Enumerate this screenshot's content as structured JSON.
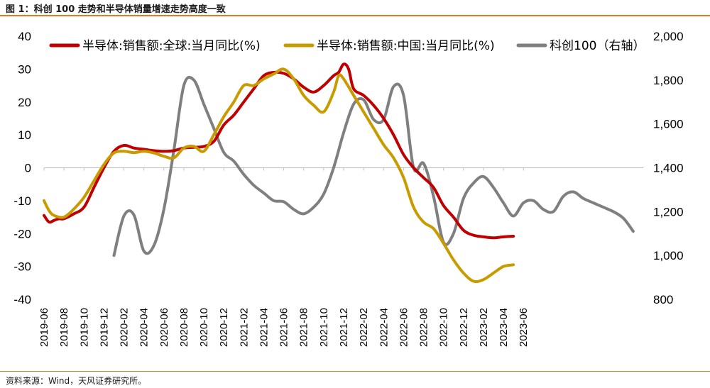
{
  "header": {
    "title": "图 1：科创 100 走势和半导体销量增速走势高度一致"
  },
  "footer": {
    "source": "资料来源：Wind，天风证券研究所。"
  },
  "colors": {
    "global": "#c00000",
    "china": "#c89b00",
    "kc100": "#7f7f7f",
    "accent": "#e87722"
  },
  "chart_data": {
    "type": "line",
    "title": "科创 100 走势和半导体销量增速走势高度一致",
    "x_tick_labels": [
      "2019-06",
      "2019-08",
      "2019-10",
      "2019-12",
      "2020-02",
      "2020-04",
      "2020-06",
      "2020-08",
      "2020-10",
      "2020-12",
      "2021-02",
      "2021-04",
      "2021-06",
      "2021-08",
      "2021-10",
      "2021-12",
      "2022-02",
      "2022-04",
      "2022-06",
      "2022-08",
      "2022-10",
      "2022-12",
      "2023-02",
      "2023-04",
      "2023-06"
    ],
    "y_left": {
      "min": -40,
      "max": 40,
      "ticks": [
        "40",
        "30",
        "20",
        "10",
        "0",
        "-10",
        "-20",
        "-30",
        "-40"
      ]
    },
    "y_right": {
      "min": 800,
      "max": 2000,
      "ticks": [
        "2,000",
        "1,800",
        "1,600",
        "1,400",
        "1,200",
        "1,000",
        "800"
      ]
    },
    "series": [
      {
        "name": "半导体:销售额:全球:当月同比(%)",
        "axis": "left",
        "color": "#c00000",
        "points": [
          [
            0,
            -14.5
          ],
          [
            0.5,
            -16.5
          ],
          [
            1,
            -16
          ],
          [
            1.5,
            -15.5
          ],
          [
            2,
            -15.5
          ],
          [
            3,
            -14
          ],
          [
            4,
            -12
          ],
          [
            5,
            -6
          ],
          [
            6,
            0
          ],
          [
            7,
            5
          ],
          [
            8,
            6.8
          ],
          [
            9,
            6
          ],
          [
            10,
            5.6
          ],
          [
            11,
            5.2
          ],
          [
            12,
            5
          ],
          [
            13,
            5.2
          ],
          [
            14,
            6
          ],
          [
            15,
            6.2
          ],
          [
            16,
            6.5
          ],
          [
            17,
            8
          ],
          [
            18,
            13
          ],
          [
            19,
            16
          ],
          [
            20,
            20
          ],
          [
            21,
            24
          ],
          [
            22,
            28
          ],
          [
            23,
            29
          ],
          [
            24,
            28.7
          ],
          [
            25,
            27
          ],
          [
            26,
            24.5
          ],
          [
            27,
            23
          ],
          [
            28,
            25
          ],
          [
            29,
            28
          ],
          [
            29.5,
            29
          ],
          [
            30,
            31.5
          ],
          [
            30.5,
            30
          ],
          [
            31,
            24
          ],
          [
            32,
            22
          ],
          [
            33,
            19
          ],
          [
            34,
            15
          ],
          [
            35,
            10
          ],
          [
            36,
            4
          ],
          [
            37,
            0
          ],
          [
            38,
            -3
          ],
          [
            39,
            -6
          ],
          [
            40,
            -11.5
          ],
          [
            41,
            -15
          ],
          [
            42,
            -19
          ],
          [
            43,
            -20.5
          ],
          [
            44,
            -21
          ],
          [
            45,
            -21.3
          ],
          [
            46,
            -21
          ],
          [
            47,
            -20.8
          ]
        ]
      },
      {
        "name": "半导体:销售额:中国:当月同比(%)",
        "axis": "left",
        "color": "#c89b00",
        "points": [
          [
            0,
            -10
          ],
          [
            0.5,
            -13
          ],
          [
            1,
            -14.5
          ],
          [
            2,
            -15
          ],
          [
            3,
            -12.5
          ],
          [
            4,
            -9
          ],
          [
            5,
            -4
          ],
          [
            6,
            1
          ],
          [
            7,
            4.5
          ],
          [
            8,
            5
          ],
          [
            9,
            4.6
          ],
          [
            10,
            5
          ],
          [
            11,
            4.5
          ],
          [
            12,
            3.5
          ],
          [
            13,
            3
          ],
          [
            14,
            6
          ],
          [
            15,
            6.5
          ],
          [
            16,
            5
          ],
          [
            17,
            10
          ],
          [
            18,
            15.5
          ],
          [
            19,
            20
          ],
          [
            20,
            25
          ],
          [
            21,
            25
          ],
          [
            22,
            27
          ],
          [
            23,
            28.5
          ],
          [
            24,
            30
          ],
          [
            25,
            27
          ],
          [
            26,
            22
          ],
          [
            27,
            19
          ],
          [
            28,
            17
          ],
          [
            29,
            23
          ],
          [
            29.5,
            28
          ],
          [
            30,
            27
          ],
          [
            31,
            22
          ],
          [
            32,
            17
          ],
          [
            33,
            12
          ],
          [
            34,
            7
          ],
          [
            35,
            3
          ],
          [
            36,
            -3
          ],
          [
            37,
            -12
          ],
          [
            38,
            -16.5
          ],
          [
            39,
            -18.5
          ],
          [
            40,
            -23
          ],
          [
            41,
            -28
          ],
          [
            42,
            -32
          ],
          [
            43,
            -34.5
          ],
          [
            44,
            -34
          ],
          [
            45,
            -32
          ],
          [
            46,
            -30
          ],
          [
            47,
            -29.5
          ]
        ]
      },
      {
        "name": "科创100（右轴）",
        "axis": "right",
        "color": "#7f7f7f",
        "points": [
          [
            7,
            1000
          ],
          [
            8,
            1180
          ],
          [
            9,
            1185
          ],
          [
            10,
            1020
          ],
          [
            11,
            1045
          ],
          [
            12,
            1210
          ],
          [
            13,
            1480
          ],
          [
            14,
            1775
          ],
          [
            15,
            1800
          ],
          [
            16,
            1690
          ],
          [
            17,
            1580
          ],
          [
            18,
            1470
          ],
          [
            19,
            1430
          ],
          [
            20,
            1370
          ],
          [
            21,
            1320
          ],
          [
            22,
            1285
          ],
          [
            23,
            1250
          ],
          [
            24,
            1245
          ],
          [
            25,
            1210
          ],
          [
            26,
            1190
          ],
          [
            27,
            1220
          ],
          [
            28,
            1280
          ],
          [
            29,
            1400
          ],
          [
            30,
            1560
          ],
          [
            31,
            1690
          ],
          [
            32,
            1710
          ],
          [
            33,
            1620
          ],
          [
            34,
            1620
          ],
          [
            35,
            1770
          ],
          [
            36,
            1730
          ],
          [
            37,
            1400
          ],
          [
            38,
            1420
          ],
          [
            39,
            1270
          ],
          [
            40,
            1060
          ],
          [
            41,
            1100
          ],
          [
            42,
            1260
          ],
          [
            43,
            1330
          ],
          [
            44,
            1360
          ],
          [
            45,
            1310
          ],
          [
            46,
            1240
          ],
          [
            47,
            1180
          ],
          [
            48,
            1240
          ],
          [
            49,
            1250
          ],
          [
            50,
            1210
          ],
          [
            51,
            1200
          ],
          [
            52,
            1270
          ],
          [
            53,
            1290
          ],
          [
            54,
            1260
          ],
          [
            55,
            1240
          ],
          [
            56,
            1220
          ],
          [
            57,
            1200
          ],
          [
            58,
            1170
          ],
          [
            59,
            1110
          ]
        ]
      }
    ]
  }
}
